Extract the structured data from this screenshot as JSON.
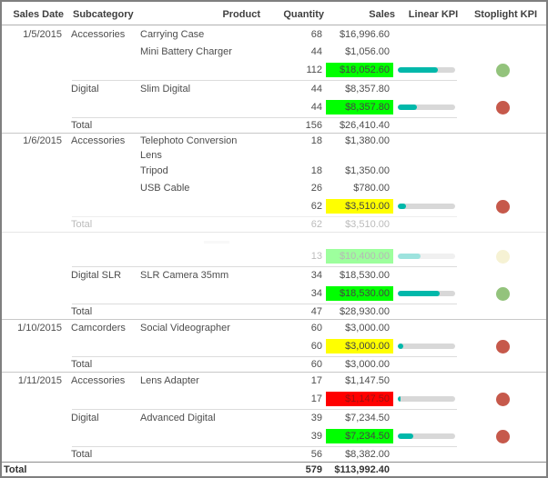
{
  "header": {
    "columns": [
      {
        "label": "Sales Date"
      },
      {
        "label": "Subcategory"
      },
      {
        "label": "Product"
      },
      {
        "label": "Quantity"
      },
      {
        "label": "Sales"
      },
      {
        "label": "Linear KPI"
      },
      {
        "label": "Stoplight KPI"
      }
    ]
  },
  "colors": {
    "green": "#00ff00",
    "yellow": "#ffff00",
    "red": "#ff0000",
    "teal": "#01b8aa",
    "track": "#d8d8d8",
    "dot_green": "#93c37c",
    "dot_red": "#c6594b",
    "dot_yellow": "#e8dc8d"
  },
  "rows": [
    {
      "type": "detail",
      "date": "1/5/2015",
      "sub": "Accessories",
      "prod": "Carrying Case",
      "qty": "68",
      "sales": "$16,996.60",
      "border": "none"
    },
    {
      "type": "detail",
      "date": "",
      "sub": "",
      "prod": "Mini Battery Charger",
      "qty": "44",
      "sales": "$1,056.00",
      "border": "none"
    },
    {
      "type": "subtotal",
      "date": "",
      "sub": "",
      "prod": "",
      "qty": "112",
      "sales": "$18,052.60",
      "bg": "green",
      "kpi": 0.7,
      "dot": "green",
      "border": "none"
    },
    {
      "type": "detail",
      "date": "",
      "sub": "Digital",
      "prod": "Slim Digital",
      "qty": "44",
      "sales": "$8,357.80",
      "border": "light"
    },
    {
      "type": "subtotal",
      "date": "",
      "sub": "",
      "prod": "",
      "qty": "44",
      "sales": "$8,357.80",
      "bg": "green",
      "kpi": 0.33,
      "dot": "red",
      "border": "none"
    },
    {
      "type": "total",
      "date": "",
      "sub": "Total",
      "prod": "",
      "qty": "156",
      "sales": "$26,410.40",
      "border": "light"
    },
    {
      "type": "detail",
      "tall": true,
      "date": "1/6/2015",
      "sub": "Accessories",
      "prod": "Telephoto Conversion Lens",
      "qty": "18",
      "sales": "$1,380.00",
      "border": "group"
    },
    {
      "type": "detail",
      "date": "",
      "sub": "",
      "prod": "Tripod",
      "qty": "18",
      "sales": "$1,350.00",
      "border": "none"
    },
    {
      "type": "detail",
      "date": "",
      "sub": "",
      "prod": "USB Cable",
      "qty": "26",
      "sales": "$780.00",
      "border": "none"
    },
    {
      "type": "subtotal",
      "date": "",
      "sub": "",
      "prod": "",
      "qty": "62",
      "sales": "$3,510.00",
      "bg": "yellow",
      "kpi": 0.15,
      "dot": "red",
      "border": "none"
    },
    {
      "type": "total",
      "faded": true,
      "date": "",
      "sub": "Total",
      "prod": "",
      "qty": "62",
      "sales": "$3,510.00",
      "border": "light"
    },
    {
      "type": "spacer",
      "faded": true,
      "date": "",
      "sub": "",
      "prod": "",
      "qty": "",
      "sales": "",
      "border": "group"
    },
    {
      "type": "subtotal",
      "faded": true,
      "date": "",
      "sub": "",
      "prod": "",
      "qty": "13",
      "sales": "$10,400.00",
      "bg": "green",
      "kpi": 0.4,
      "dot": "yellow",
      "border": "none"
    },
    {
      "type": "detail",
      "date": "",
      "sub": "Digital SLR",
      "prod": "SLR Camera 35mm",
      "qty": "34",
      "sales": "$18,530.00",
      "border": "light"
    },
    {
      "type": "subtotal",
      "date": "",
      "sub": "",
      "prod": "",
      "qty": "34",
      "sales": "$18,530.00",
      "bg": "green",
      "kpi": 0.73,
      "dot": "green",
      "border": "none"
    },
    {
      "type": "total",
      "date": "",
      "sub": "Total",
      "prod": "",
      "qty": "47",
      "sales": "$28,930.00",
      "border": "light"
    },
    {
      "type": "detail",
      "date": "1/10/2015",
      "sub": "Camcorders",
      "prod": "Social Videographer",
      "qty": "60",
      "sales": "$3,000.00",
      "border": "group"
    },
    {
      "type": "subtotal",
      "date": "",
      "sub": "",
      "prod": "",
      "qty": "60",
      "sales": "$3,000.00",
      "bg": "yellow",
      "kpi": 0.1,
      "dot": "red",
      "border": "none"
    },
    {
      "type": "total",
      "date": "",
      "sub": "Total",
      "prod": "",
      "qty": "60",
      "sales": "$3,000.00",
      "border": "light"
    },
    {
      "type": "detail",
      "date": "1/11/2015",
      "sub": "Accessories",
      "prod": "Lens Adapter",
      "qty": "17",
      "sales": "$1,147.50",
      "border": "group"
    },
    {
      "type": "subtotal",
      "date": "",
      "sub": "",
      "prod": "",
      "qty": "17",
      "sales": "$1,147.50",
      "bg": "red",
      "kpi": 0.05,
      "dot": "red",
      "border": "none"
    },
    {
      "type": "detail",
      "date": "",
      "sub": "Digital",
      "prod": "Advanced Digital",
      "qty": "39",
      "sales": "$7,234.50",
      "border": "light"
    },
    {
      "type": "subtotal",
      "date": "",
      "sub": "",
      "prod": "",
      "qty": "39",
      "sales": "$7,234.50",
      "bg": "green",
      "kpi": 0.27,
      "dot": "red",
      "border": "none"
    },
    {
      "type": "total",
      "date": "",
      "sub": "Total",
      "prod": "",
      "qty": "56",
      "sales": "$8,382.00",
      "border": "light"
    },
    {
      "type": "grand",
      "date": "Total",
      "sub": "",
      "prod": "",
      "qty": "579",
      "sales": "$113,992.40",
      "border": "strong"
    }
  ]
}
